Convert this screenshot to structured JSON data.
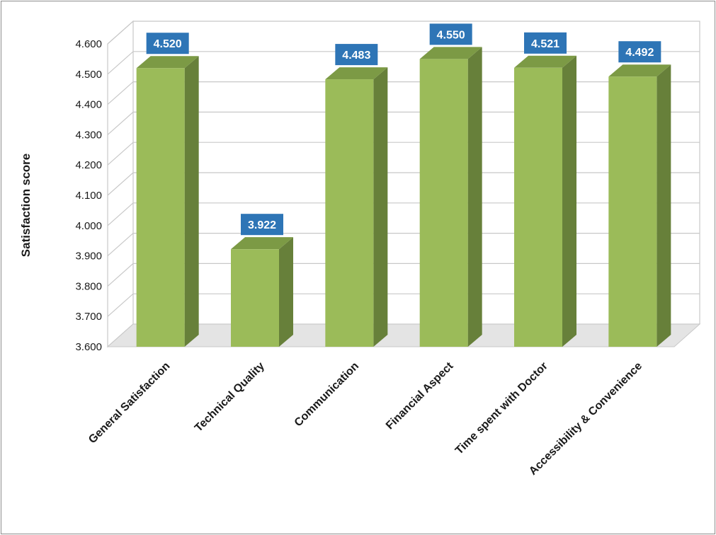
{
  "chart_data": {
    "type": "bar",
    "title": "",
    "xlabel": "",
    "ylabel": "Satisfaction score",
    "categories": [
      "General Satisfaction",
      "Technical Quality",
      "Communication",
      "Financial Aspect",
      "Time spent with Doctor",
      "Accessibility & Convenience"
    ],
    "values": [
      4.52,
      3.922,
      4.483,
      4.55,
      4.521,
      4.492
    ],
    "data_labels": [
      "4.520",
      "3.922",
      "4.483",
      "4.550",
      "4.521",
      "4.492"
    ],
    "ylim": [
      3.6,
      4.6
    ],
    "yticks": [
      "3.600",
      "3.700",
      "3.800",
      "3.900",
      "4.000",
      "4.100",
      "4.200",
      "4.300",
      "4.400",
      "4.500",
      "4.600"
    ],
    "grid": true,
    "legend": "none",
    "style": "3d-bar",
    "colors": {
      "bar_front": "#9bbb59",
      "bar_side": "#67803a",
      "bar_top": "#7c9a45",
      "data_label_bg": "#2e75b6",
      "gridline": "#c8c8c8",
      "floor": "#e4e4e4"
    }
  }
}
